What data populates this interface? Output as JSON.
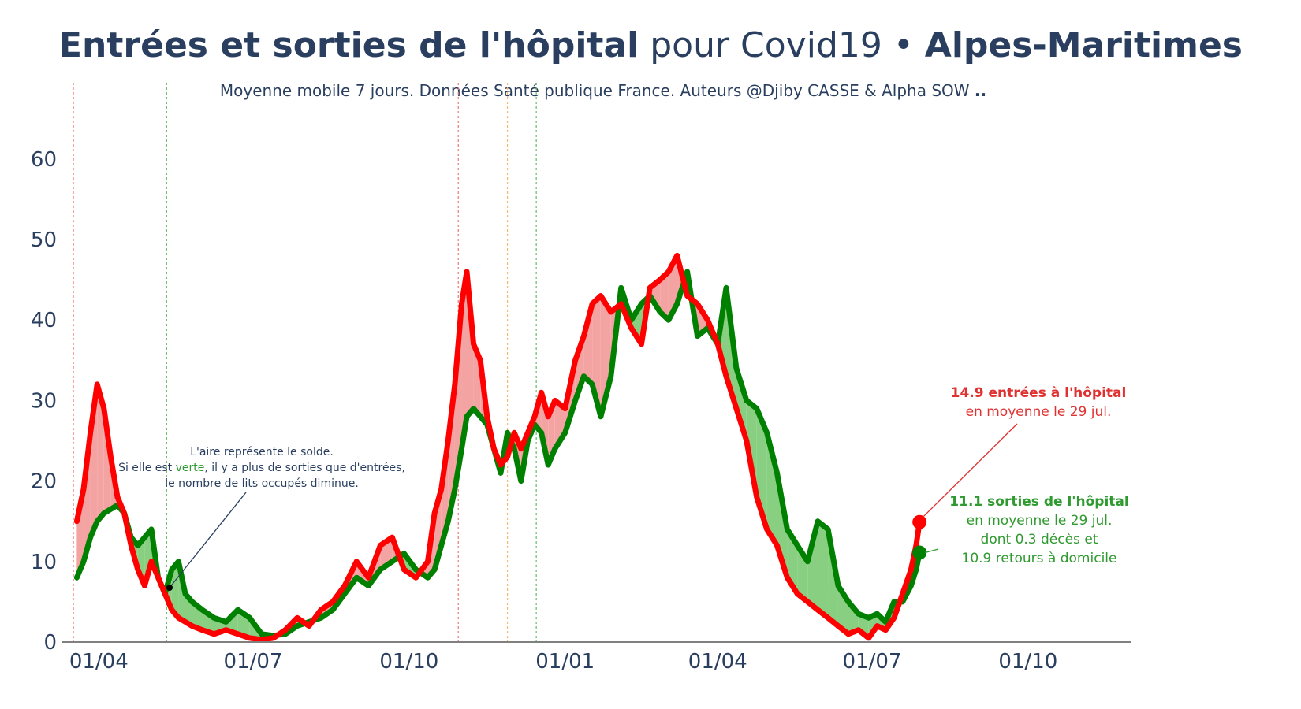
{
  "title": {
    "part1": "Entrées et sorties de l'hôpital",
    "part2": " pour Covid19 • ",
    "part3": "Alpes-Maritimes"
  },
  "subtitle": {
    "text": "Moyenne mobile 7 jours. Données Santé publique France. Auteurs @Djiby CASSE & Alpha SOW ",
    "suffix": ".."
  },
  "colors": {
    "entries": "#ff0000",
    "exits": "#008000",
    "fill_more_entries": "#f4a3a3",
    "fill_more_exits": "#88cf82",
    "axis_text": "#2a3f5f",
    "text_dark": "#2a3f5f",
    "annot_red": "#e03131",
    "annot_green": "#2f9a2f",
    "vline_red": "#ee7777",
    "vline_green": "#66bb66",
    "vline_orange": "#f5b971"
  },
  "annotations": {
    "note": {
      "line1": "L'aire représente le solde.",
      "line2_pre": "Si elle est ",
      "line2_word": "verte",
      "line2_post": ", il y a plus de sorties que d'entrées,",
      "line3": "le nombre de lits occupés diminue."
    },
    "entries": {
      "line1": "14.9 entrées à l'hôpital",
      "line2": "en moyenne le 29 jul."
    },
    "exits": {
      "line1": "11.1 sorties de l'hôpital",
      "line2": "en moyenne le 29 jul.",
      "line3": "dont 0.3 décès et",
      "line4": "10.9 retours à domicile"
    }
  },
  "chart_data": {
    "type": "line",
    "x_start": "2020-03-19",
    "x_end": "2021-07-29",
    "xlim": [
      "2020-03-10",
      "2021-12-01"
    ],
    "ylim": [
      0,
      68
    ],
    "yticks": [
      0,
      10,
      20,
      30,
      40,
      50,
      60
    ],
    "xticks": [
      {
        "date": "2020-04-01",
        "label": "01/04"
      },
      {
        "date": "2020-07-01",
        "label": "01/07"
      },
      {
        "date": "2020-10-01",
        "label": "01/10"
      },
      {
        "date": "2021-01-01",
        "label": "01/01"
      },
      {
        "date": "2021-04-01",
        "label": "01/04"
      },
      {
        "date": "2021-07-01",
        "label": "01/07"
      },
      {
        "date": "2021-10-01",
        "label": "01/10"
      }
    ],
    "vertical_lines": [
      {
        "date": "2020-03-17",
        "color": "red"
      },
      {
        "date": "2020-05-11",
        "color": "green"
      },
      {
        "date": "2020-10-30",
        "color": "red"
      },
      {
        "date": "2020-11-28",
        "color": "orange"
      },
      {
        "date": "2020-12-15",
        "color": "green"
      }
    ],
    "series": [
      {
        "key": "entries",
        "points": [
          [
            "2020-03-19",
            15
          ],
          [
            "2020-03-23",
            19
          ],
          [
            "2020-03-27",
            26
          ],
          [
            "2020-03-31",
            32
          ],
          [
            "2020-04-04",
            29
          ],
          [
            "2020-04-08",
            23
          ],
          [
            "2020-04-12",
            18
          ],
          [
            "2020-04-16",
            16
          ],
          [
            "2020-04-20",
            12
          ],
          [
            "2020-04-24",
            9
          ],
          [
            "2020-04-28",
            7
          ],
          [
            "2020-05-02",
            10
          ],
          [
            "2020-05-06",
            8
          ],
          [
            "2020-05-10",
            6
          ],
          [
            "2020-05-14",
            4
          ],
          [
            "2020-05-18",
            3
          ],
          [
            "2020-05-22",
            2.5
          ],
          [
            "2020-05-26",
            2
          ],
          [
            "2020-06-01",
            1.5
          ],
          [
            "2020-06-08",
            1
          ],
          [
            "2020-06-15",
            1.5
          ],
          [
            "2020-06-22",
            1
          ],
          [
            "2020-06-29",
            0.5
          ],
          [
            "2020-07-06",
            0.3
          ],
          [
            "2020-07-13",
            0.5
          ],
          [
            "2020-07-20",
            1.5
          ],
          [
            "2020-07-27",
            3
          ],
          [
            "2020-08-03",
            2
          ],
          [
            "2020-08-10",
            4
          ],
          [
            "2020-08-17",
            5
          ],
          [
            "2020-08-24",
            7
          ],
          [
            "2020-08-31",
            10
          ],
          [
            "2020-09-07",
            8
          ],
          [
            "2020-09-14",
            12
          ],
          [
            "2020-09-21",
            13
          ],
          [
            "2020-09-28",
            9
          ],
          [
            "2020-10-05",
            8
          ],
          [
            "2020-10-12",
            10
          ],
          [
            "2020-10-16",
            16
          ],
          [
            "2020-10-20",
            19
          ],
          [
            "2020-10-24",
            25
          ],
          [
            "2020-10-28",
            32
          ],
          [
            "2020-11-01",
            42
          ],
          [
            "2020-11-04",
            46
          ],
          [
            "2020-11-08",
            37
          ],
          [
            "2020-11-12",
            35
          ],
          [
            "2020-11-16",
            28
          ],
          [
            "2020-11-20",
            24
          ],
          [
            "2020-11-24",
            22
          ],
          [
            "2020-11-28",
            23
          ],
          [
            "2020-12-02",
            26
          ],
          [
            "2020-12-06",
            24
          ],
          [
            "2020-12-10",
            26
          ],
          [
            "2020-12-14",
            28
          ],
          [
            "2020-12-18",
            31
          ],
          [
            "2020-12-22",
            28
          ],
          [
            "2020-12-26",
            30
          ],
          [
            "2021-01-01",
            29
          ],
          [
            "2021-01-07",
            35
          ],
          [
            "2021-01-12",
            38
          ],
          [
            "2021-01-17",
            42
          ],
          [
            "2021-01-22",
            43
          ],
          [
            "2021-01-28",
            41
          ],
          [
            "2021-02-03",
            42
          ],
          [
            "2021-02-09",
            39
          ],
          [
            "2021-02-15",
            37
          ],
          [
            "2021-02-20",
            44
          ],
          [
            "2021-02-26",
            45
          ],
          [
            "2021-03-03",
            46
          ],
          [
            "2021-03-08",
            48
          ],
          [
            "2021-03-14",
            43
          ],
          [
            "2021-03-20",
            42
          ],
          [
            "2021-03-26",
            40
          ],
          [
            "2021-04-01",
            37
          ],
          [
            "2021-04-06",
            33
          ],
          [
            "2021-04-12",
            29
          ],
          [
            "2021-04-18",
            25
          ],
          [
            "2021-04-24",
            18
          ],
          [
            "2021-04-30",
            14
          ],
          [
            "2021-05-06",
            12
          ],
          [
            "2021-05-12",
            8
          ],
          [
            "2021-05-18",
            6
          ],
          [
            "2021-05-24",
            5
          ],
          [
            "2021-05-30",
            4
          ],
          [
            "2021-06-05",
            3
          ],
          [
            "2021-06-11",
            2
          ],
          [
            "2021-06-17",
            1
          ],
          [
            "2021-06-23",
            1.5
          ],
          [
            "2021-06-29",
            0.5
          ],
          [
            "2021-07-04",
            2
          ],
          [
            "2021-07-09",
            1.5
          ],
          [
            "2021-07-14",
            3
          ],
          [
            "2021-07-19",
            6
          ],
          [
            "2021-07-24",
            9
          ],
          [
            "2021-07-27",
            12
          ],
          [
            "2021-07-29",
            14.9
          ]
        ]
      },
      {
        "key": "exits",
        "points": [
          [
            "2020-03-19",
            8
          ],
          [
            "2020-03-23",
            10
          ],
          [
            "2020-03-27",
            13
          ],
          [
            "2020-03-31",
            15
          ],
          [
            "2020-04-04",
            16
          ],
          [
            "2020-04-08",
            16.5
          ],
          [
            "2020-04-12",
            17
          ],
          [
            "2020-04-16",
            16
          ],
          [
            "2020-04-20",
            13
          ],
          [
            "2020-04-24",
            12
          ],
          [
            "2020-04-28",
            13
          ],
          [
            "2020-05-02",
            14
          ],
          [
            "2020-05-06",
            8
          ],
          [
            "2020-05-10",
            6
          ],
          [
            "2020-05-14",
            9
          ],
          [
            "2020-05-18",
            10
          ],
          [
            "2020-05-22",
            6
          ],
          [
            "2020-05-26",
            5
          ],
          [
            "2020-06-01",
            4
          ],
          [
            "2020-06-08",
            3
          ],
          [
            "2020-06-15",
            2.5
          ],
          [
            "2020-06-22",
            4
          ],
          [
            "2020-06-29",
            3
          ],
          [
            "2020-07-06",
            1
          ],
          [
            "2020-07-13",
            0.8
          ],
          [
            "2020-07-20",
            1
          ],
          [
            "2020-07-27",
            2
          ],
          [
            "2020-08-03",
            2.5
          ],
          [
            "2020-08-10",
            3
          ],
          [
            "2020-08-17",
            4
          ],
          [
            "2020-08-24",
            6
          ],
          [
            "2020-08-31",
            8
          ],
          [
            "2020-09-07",
            7
          ],
          [
            "2020-09-14",
            9
          ],
          [
            "2020-09-21",
            10
          ],
          [
            "2020-09-28",
            11
          ],
          [
            "2020-10-05",
            9
          ],
          [
            "2020-10-12",
            8
          ],
          [
            "2020-10-16",
            9
          ],
          [
            "2020-10-20",
            12
          ],
          [
            "2020-10-24",
            15
          ],
          [
            "2020-10-28",
            19
          ],
          [
            "2020-11-01",
            24
          ],
          [
            "2020-11-04",
            28
          ],
          [
            "2020-11-08",
            29
          ],
          [
            "2020-11-12",
            28
          ],
          [
            "2020-11-16",
            27
          ],
          [
            "2020-11-20",
            24
          ],
          [
            "2020-11-24",
            21
          ],
          [
            "2020-11-28",
            26
          ],
          [
            "2020-12-02",
            24
          ],
          [
            "2020-12-06",
            20
          ],
          [
            "2020-12-10",
            25
          ],
          [
            "2020-12-14",
            27
          ],
          [
            "2020-12-18",
            26
          ],
          [
            "2020-12-22",
            22
          ],
          [
            "2020-12-26",
            24
          ],
          [
            "2021-01-01",
            26
          ],
          [
            "2021-01-07",
            30
          ],
          [
            "2021-01-12",
            33
          ],
          [
            "2021-01-17",
            32
          ],
          [
            "2021-01-22",
            28
          ],
          [
            "2021-01-28",
            33
          ],
          [
            "2021-02-03",
            44
          ],
          [
            "2021-02-09",
            40
          ],
          [
            "2021-02-15",
            42
          ],
          [
            "2021-02-20",
            43
          ],
          [
            "2021-02-26",
            41
          ],
          [
            "2021-03-03",
            40
          ],
          [
            "2021-03-08",
            42
          ],
          [
            "2021-03-14",
            46
          ],
          [
            "2021-03-20",
            38
          ],
          [
            "2021-03-26",
            39
          ],
          [
            "2021-04-01",
            37
          ],
          [
            "2021-04-06",
            44
          ],
          [
            "2021-04-12",
            34
          ],
          [
            "2021-04-18",
            30
          ],
          [
            "2021-04-24",
            29
          ],
          [
            "2021-04-30",
            26
          ],
          [
            "2021-05-06",
            21
          ],
          [
            "2021-05-12",
            14
          ],
          [
            "2021-05-18",
            12
          ],
          [
            "2021-05-24",
            10
          ],
          [
            "2021-05-30",
            15
          ],
          [
            "2021-06-05",
            14
          ],
          [
            "2021-06-11",
            7
          ],
          [
            "2021-06-17",
            5
          ],
          [
            "2021-06-23",
            3.5
          ],
          [
            "2021-06-29",
            3
          ],
          [
            "2021-07-04",
            3.5
          ],
          [
            "2021-07-09",
            2.5
          ],
          [
            "2021-07-14",
            5
          ],
          [
            "2021-07-19",
            5
          ],
          [
            "2021-07-24",
            7
          ],
          [
            "2021-07-27",
            9
          ],
          [
            "2021-07-29",
            11.1
          ]
        ]
      }
    ]
  }
}
